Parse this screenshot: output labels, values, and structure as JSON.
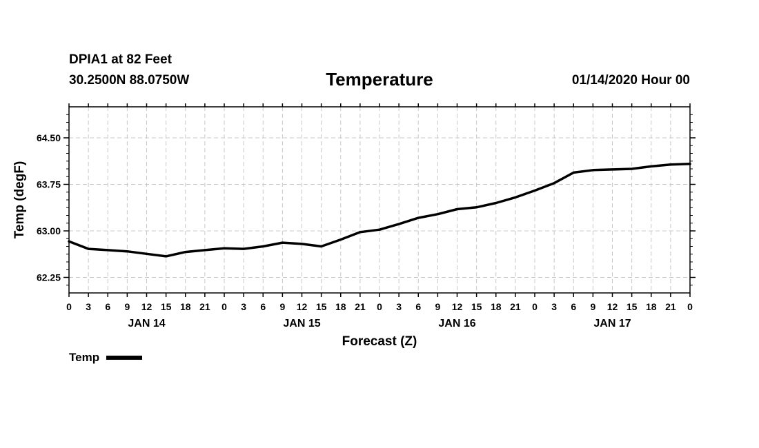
{
  "header": {
    "station": "DPIA1 at 82 Feet",
    "coords": "30.2500N 88.0750W",
    "title": "Temperature",
    "run_time": "01/14/2020 Hour 00"
  },
  "chart_data": {
    "type": "line",
    "title": "Temperature",
    "xlabel": "Forecast (Z)",
    "ylabel": "Temp (degF)",
    "ylim": [
      62.0,
      65.0
    ],
    "xlim": [
      0,
      96
    ],
    "yticks": [
      62.25,
      63.0,
      63.75,
      64.5
    ],
    "ytick_labels": [
      "62.25",
      "63.00",
      "63.75",
      "64.50"
    ],
    "xtick_hours": [
      0,
      3,
      6,
      9,
      12,
      15,
      18,
      21,
      24,
      27,
      30,
      33,
      36,
      39,
      42,
      45,
      48,
      51,
      54,
      57,
      60,
      63,
      66,
      69,
      72,
      75,
      78,
      81,
      84,
      87,
      90,
      93,
      96
    ],
    "xtick_labels": [
      "0",
      "3",
      "6",
      "9",
      "12",
      "15",
      "18",
      "21",
      "0",
      "3",
      "6",
      "9",
      "12",
      "15",
      "18",
      "21",
      "0",
      "3",
      "6",
      "9",
      "12",
      "15",
      "18",
      "21",
      "0",
      "3",
      "6",
      "9",
      "12",
      "15",
      "18",
      "21",
      "0"
    ],
    "day_labels": [
      {
        "label": "JAN 14",
        "hour": 12
      },
      {
        "label": "JAN 15",
        "hour": 36
      },
      {
        "label": "JAN 16",
        "hour": 60
      },
      {
        "label": "JAN 17",
        "hour": 84
      }
    ],
    "grid": true,
    "legend_position": "bottom-left",
    "series": [
      {
        "name": "Temp",
        "x": [
          0,
          3,
          6,
          9,
          12,
          15,
          18,
          21,
          24,
          27,
          30,
          33,
          36,
          39,
          42,
          45,
          48,
          51,
          54,
          57,
          60,
          63,
          66,
          69,
          72,
          75,
          78,
          81,
          84,
          87,
          90,
          93,
          96
        ],
        "values": [
          62.83,
          62.71,
          62.69,
          62.67,
          62.63,
          62.59,
          62.66,
          62.69,
          62.72,
          62.71,
          62.75,
          62.81,
          62.79,
          62.75,
          62.86,
          62.98,
          63.02,
          63.11,
          63.21,
          63.27,
          63.35,
          63.38,
          63.45,
          63.54,
          63.65,
          63.77,
          63.94,
          63.98,
          63.99,
          64.0,
          64.04,
          64.07,
          64.08
        ]
      }
    ]
  },
  "legend": {
    "label": "Temp"
  }
}
